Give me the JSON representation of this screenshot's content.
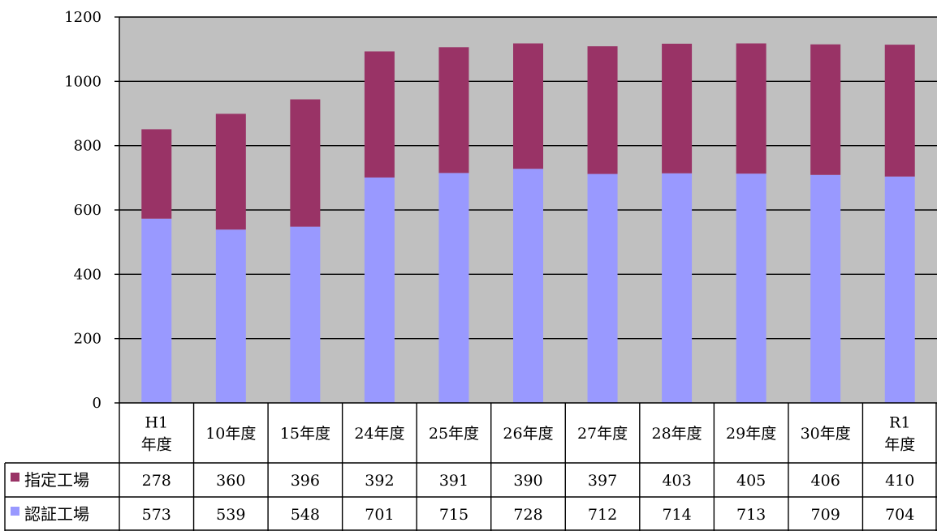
{
  "chart_data": {
    "type": "bar",
    "stacked": true,
    "categories": [
      "H1\n年度",
      "10年度",
      "15年度",
      "24年度",
      "25年度",
      "26年度",
      "27年度",
      "28年度",
      "29年度",
      "30年度",
      "R1\n年度"
    ],
    "series": [
      {
        "name": "認証工場",
        "color": "#9999ff",
        "values": [
          573,
          539,
          548,
          701,
          715,
          728,
          712,
          714,
          713,
          709,
          704
        ]
      },
      {
        "name": "指定工場",
        "color": "#993366",
        "values": [
          278,
          360,
          396,
          392,
          391,
          390,
          397,
          403,
          405,
          406,
          410
        ]
      }
    ],
    "ylim": [
      0,
      1200
    ],
    "yticks": [
      0,
      200,
      400,
      600,
      800,
      1000,
      1200
    ],
    "grid": true,
    "plot_background": "#c0c0c0",
    "data_table": true,
    "title": "",
    "xlabel": "",
    "ylabel": ""
  }
}
